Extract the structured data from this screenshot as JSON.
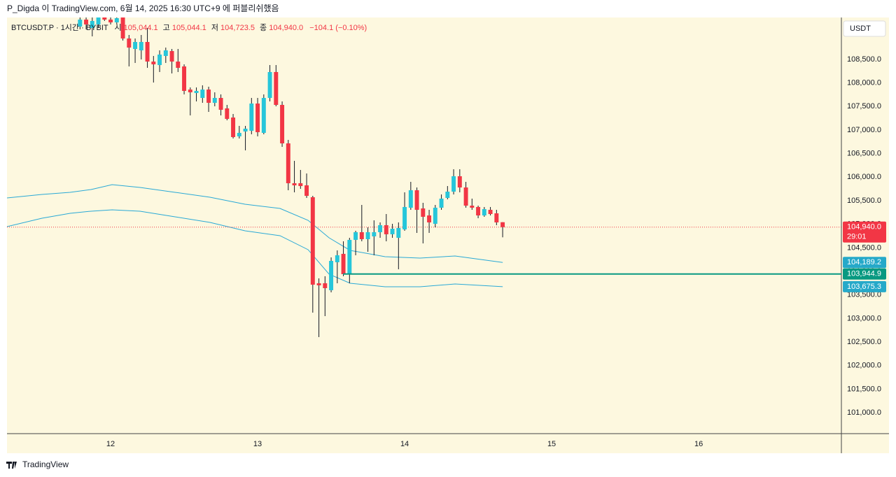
{
  "header": {
    "text": "P_Digda 이 TradingView.com, 6월 14, 2025 16:30 UTC+9 에 퍼블리쉬했음"
  },
  "footer": {
    "brand": "TradingView"
  },
  "chart_data": {
    "type": "candlestick",
    "legend": {
      "symbol": "BTCUSDT.P · 1시간 · BYBIT",
      "open_label": "시",
      "open": "105,044.1",
      "high_label": "고",
      "high": "105,044.1",
      "low_label": "저",
      "low": "104,723.5",
      "close_label": "종",
      "close": "104,940.0",
      "change": "−104.1 (−0.10%)"
    },
    "currency": "USDT",
    "up_color": "#26c6da",
    "down_color": "#f23645",
    "x": [
      11.7917,
      11.8333,
      11.875,
      11.9167,
      11.9583,
      12,
      12.0417,
      12.0833,
      12.125,
      12.1667,
      12.2083,
      12.25,
      12.2917,
      12.3333,
      12.375,
      12.4167,
      12.4583,
      12.5,
      12.5417,
      12.5833,
      12.625,
      12.6667,
      12.7083,
      12.75,
      12.7917,
      12.8333,
      12.875,
      12.9167,
      12.9583,
      13,
      13.0417,
      13.0833,
      13.125,
      13.1667,
      13.2083,
      13.25,
      13.2917,
      13.3333,
      13.375,
      13.4167,
      13.4583,
      13.5,
      13.5417,
      13.5833,
      13.625,
      13.6667,
      13.7083,
      13.75,
      13.7917,
      13.8333,
      13.875,
      13.9167,
      13.9583,
      14,
      14.0417,
      14.0833,
      14.125,
      14.1667,
      14.2083,
      14.25,
      14.2917,
      14.3333,
      14.375,
      14.4167,
      14.4583,
      14.5,
      14.5417,
      14.5833,
      14.625,
      14.6667
    ],
    "open": [
      109198,
      109346,
      109168,
      109243,
      109391,
      109346,
      109287,
      109391,
      108945,
      108723,
      108693,
      108871,
      108455,
      108381,
      108574,
      108678,
      108455,
      108352,
      107861,
      107787,
      107683,
      107861,
      107579,
      107683,
      107461,
      107267,
      106867,
      106970,
      106985,
      107564,
      106941,
      107683,
      108233,
      107535,
      106718,
      105872,
      105872,
      105827,
      105575,
      103748,
      103748,
      103600,
      104194,
      104372,
      103941,
      104669,
      104832,
      104684,
      104743,
      104832,
      104981,
      104788,
      104713,
      104891,
      105352,
      105723,
      105337,
      105188,
      105010,
      105352,
      105560,
      105693,
      106020,
      105782,
      105396,
      105367,
      105188,
      105307,
      105233,
      105044.1
    ],
    "high": [
      109436,
      109436,
      109406,
      109465,
      109465,
      109436,
      109465,
      109465,
      109020,
      108945,
      109020,
      109168,
      108574,
      108693,
      108752,
      108723,
      108723,
      108396,
      107906,
      107906,
      107951,
      107921,
      107802,
      107758,
      107535,
      107342,
      107089,
      107089,
      107683,
      107683,
      107758,
      108381,
      108381,
      107609,
      106792,
      106347,
      106154,
      106079,
      105604,
      103852,
      103897,
      104297,
      104446,
      104639,
      104713,
      104862,
      105411,
      104936,
      105084,
      105040,
      105218,
      105010,
      105040,
      105679,
      105901,
      105782,
      105456,
      105307,
      105411,
      105634,
      105812,
      106169,
      106169,
      105901,
      105545,
      105396,
      105367,
      105367,
      105307,
      105044.1
    ],
    "low": [
      109139,
      109139,
      108990,
      109168,
      109317,
      109243,
      109243,
      108901,
      108352,
      108426,
      108500,
      108322,
      108010,
      108233,
      108426,
      108203,
      108233,
      107758,
      107312,
      107609,
      107579,
      107386,
      107505,
      107312,
      107208,
      106822,
      106822,
      106570,
      106911,
      106867,
      106911,
      107609,
      107505,
      106644,
      105723,
      105679,
      105753,
      105560,
      103124,
      102605,
      103050,
      103555,
      103748,
      103897,
      103748,
      104342,
      104639,
      104416,
      104342,
      104713,
      104639,
      104713,
      104045,
      104862,
      105307,
      104817,
      104594,
      104817,
      104936,
      105307,
      105530,
      105634,
      105679,
      105352,
      105307,
      105129,
      105159,
      105188,
      104981,
      104723.5
    ],
    "close": [
      109346,
      109243,
      109317,
      109391,
      109346,
      109287,
      109376,
      108945,
      108752,
      108871,
      108871,
      108455,
      108396,
      108604,
      108693,
      108455,
      108322,
      107832,
      107802,
      107832,
      107861,
      107579,
      107683,
      107431,
      107238,
      106852,
      106941,
      107030,
      107564,
      106956,
      107683,
      108233,
      107535,
      106718,
      105872,
      105827,
      105812,
      105604,
      103718,
      103704,
      103644,
      104223,
      104342,
      103941,
      104669,
      104832,
      104684,
      104832,
      104832,
      104981,
      104788,
      104906,
      104921,
      105367,
      105723,
      105307,
      105159,
      105040,
      105352,
      105545,
      105693,
      106020,
      105782,
      105396,
      105352,
      105188,
      105322,
      105218,
      105040,
      104940
    ],
    "bands": [
      {
        "name": "upper",
        "color": "#29a9d6",
        "x": [
          11.295,
          11.533,
          11.724,
          11.867,
          12.01,
          12.2,
          12.438,
          12.676,
          12.914,
          13.152,
          13.343,
          13.486,
          13.629,
          13.867,
          14.105,
          14.343,
          14.667
        ],
        "values": [
          105560,
          105634,
          105679,
          105738,
          105842,
          105782,
          105679,
          105575,
          105426,
          105337,
          105084,
          104713,
          104446,
          104312,
          104283,
          104327,
          104189.2
        ]
      },
      {
        "name": "lower",
        "color": "#29a9d6",
        "x": [
          11.295,
          11.533,
          11.724,
          11.867,
          12.01,
          12.2,
          12.438,
          12.676,
          12.914,
          13.152,
          13.343,
          13.486,
          13.629,
          13.867,
          14.105,
          14.343,
          14.667
        ],
        "values": [
          104950,
          105129,
          105233,
          105278,
          105307,
          105278,
          105159,
          105040,
          104862,
          104758,
          104461,
          103941,
          103748,
          103674,
          103674,
          103733,
          103675.3
        ]
      }
    ],
    "hline": {
      "value": 103944.9,
      "color": "#089981",
      "x_start": 13.581
    },
    "price_labels": [
      {
        "value": 104940,
        "label": "104,940.0",
        "color": "#f23645",
        "countdown": "29:01"
      },
      {
        "value": 104189.2,
        "label": "104,189.2",
        "color": "#26a9c9"
      },
      {
        "value": 103944.9,
        "label": "103,944.9",
        "color": "#089981"
      },
      {
        "value": 103675.3,
        "label": "103,675.3",
        "color": "#26a9c9"
      }
    ],
    "last_price_line": true,
    "xlim": [
      11.295,
      16.971
    ],
    "xticks": [
      12,
      13,
      14,
      15,
      16
    ],
    "ylim": [
      100555,
      109391
    ],
    "yticks": [
      {
        "value": 101000,
        "label": "101,000.0"
      },
      {
        "value": 101500,
        "label": "101,500.0"
      },
      {
        "value": 102000,
        "label": "102,000.0"
      },
      {
        "value": 102500,
        "label": "102,500.0"
      },
      {
        "value": 103000,
        "label": "103,000.0"
      },
      {
        "value": 103500,
        "label": "103,500.0"
      },
      {
        "value": 104000,
        "label": "104,000.0"
      },
      {
        "value": 104500,
        "label": "104,500.0"
      },
      {
        "value": 105000,
        "label": "105,000.0"
      },
      {
        "value": 105500,
        "label": "105,500.0"
      },
      {
        "value": 106000,
        "label": "106,000.0"
      },
      {
        "value": 106500,
        "label": "106,500.0"
      },
      {
        "value": 107000,
        "label": "107,000.0"
      },
      {
        "value": 107500,
        "label": "107,500.0"
      },
      {
        "value": 108000,
        "label": "108,000.0"
      },
      {
        "value": 108500,
        "label": "108,500.0"
      }
    ],
    "grid": false
  }
}
